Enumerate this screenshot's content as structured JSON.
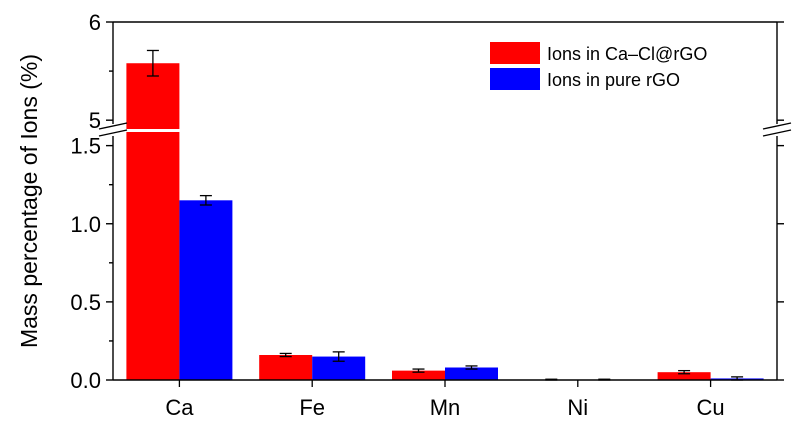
{
  "chart_data": {
    "type": "bar",
    "categories": [
      "Ca",
      "Fe",
      "Mn",
      "Ni",
      "Cu"
    ],
    "series": [
      {
        "name": "Ions in Ca–Cl@rGO",
        "color": "#ff0000",
        "values": [
          5.58,
          0.16,
          0.06,
          0.0,
          0.05
        ],
        "errors": [
          0.13,
          0.01,
          0.01,
          0.005,
          0.01
        ]
      },
      {
        "name": "Ions in pure rGO",
        "color": "#0000ff",
        "values": [
          1.15,
          0.15,
          0.08,
          0.0,
          0.01
        ],
        "errors": [
          0.03,
          0.03,
          0.01,
          0.005,
          0.01
        ]
      }
    ],
    "ylabel": "Mass percentage of Ions (%)",
    "xlabel": "",
    "y_axis_break": {
      "lower_range": [
        0,
        1.6
      ],
      "upper_range": [
        4.9,
        6.0
      ]
    },
    "yticks_lower": [
      "0.0",
      "0.5",
      "1.0",
      "1.5"
    ],
    "yticks_upper": [
      "5",
      "6"
    ],
    "grid": false,
    "legend_position": "top-right"
  }
}
